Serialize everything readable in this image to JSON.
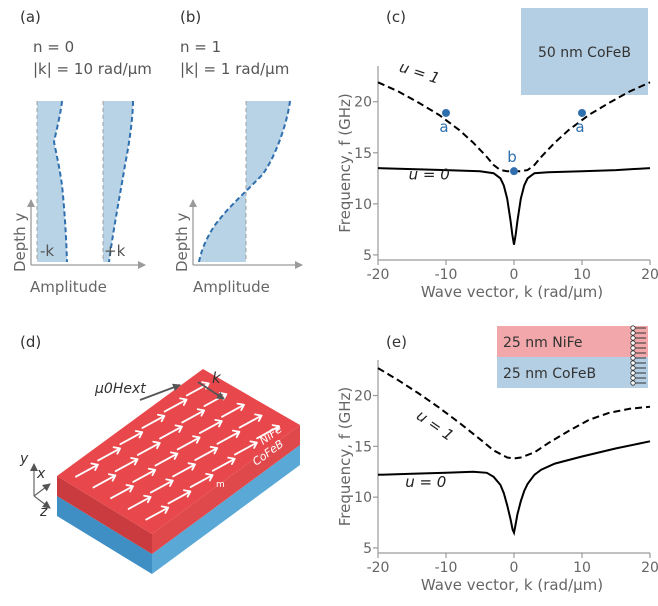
{
  "panels": {
    "a": {
      "label": "(a)",
      "n_text": "n = 0",
      "k_text": "|k| = 10 rad/µm",
      "ylabel": "Depth y",
      "xlabel": "Amplitude",
      "left_tag": "-k",
      "right_tag": "+k"
    },
    "b": {
      "label": "(b)",
      "n_text": "n = 1",
      "k_text": "|k| = 1 rad/µm",
      "ylabel": "Depth y",
      "xlabel": "Amplitude"
    },
    "c": {
      "label": "(c)",
      "legend": "50 nm CoFeB"
    },
    "d": {
      "label": "(d)",
      "field_label": "µ0Hext",
      "k_label": "k",
      "layer_top": "NiFe",
      "layer_bottom": "CoFeB",
      "m_label": "m",
      "axes": {
        "x": "x",
        "y": "y",
        "z": "z"
      }
    },
    "e": {
      "label": "(e)",
      "legend_top": "25 nm NiFe",
      "legend_bottom": "25 nm CoFeB"
    }
  },
  "colors": {
    "profile_fill": "#b8d2e6",
    "profile_line": "#2f6fad",
    "marker": "#2f6fad",
    "curve": "#000000",
    "nife": "#e8484b",
    "cofeb": "#4b9fd0",
    "legend_cofeb": "#b4cfe4",
    "legend_nife": "#f2a8aa"
  },
  "chart_data": [
    {
      "panel": "c",
      "type": "line",
      "xlabel": "Wave vector, k (rad/µm)",
      "ylabel": "Frequency, f (GHz)",
      "xlim": [
        -20,
        20
      ],
      "ylim": [
        4.5,
        23.5
      ],
      "xticks": [
        -20,
        -10,
        0,
        10,
        20
      ],
      "yticks": [
        5,
        10,
        15,
        20
      ],
      "grid": false,
      "series": [
        {
          "name": "u = 0",
          "style": "solid",
          "x": [
            -20,
            -15,
            -10,
            -5,
            -3,
            -2,
            -1.5,
            -1,
            -0.5,
            -0.25,
            0,
            0.25,
            0.5,
            1,
            1.5,
            2,
            3,
            5,
            10,
            15,
            20
          ],
          "y": [
            13.5,
            13.4,
            13.3,
            13.2,
            13.0,
            12.5,
            11.8,
            10.5,
            8.3,
            7.0,
            6.0,
            7.0,
            8.3,
            10.5,
            11.8,
            12.5,
            13.0,
            13.1,
            13.2,
            13.3,
            13.5
          ]
        },
        {
          "name": "u = 1",
          "style": "dashed",
          "x": [
            -20,
            -17,
            -14,
            -11,
            -8,
            -6,
            -4,
            -3,
            -2,
            -1,
            0,
            1,
            2,
            3,
            4,
            6,
            8,
            11,
            14,
            17,
            20
          ],
          "y": [
            21.9,
            21.0,
            19.9,
            18.7,
            17.2,
            16.0,
            14.6,
            13.8,
            13.3,
            13.2,
            13.2,
            13.2,
            13.3,
            13.8,
            14.6,
            16.0,
            17.2,
            18.7,
            19.9,
            21.0,
            21.9
          ]
        }
      ],
      "markers": [
        {
          "x": -10,
          "y": 18.9,
          "label": "a"
        },
        {
          "x": 0,
          "y": 13.2,
          "label": "b"
        },
        {
          "x": 10,
          "y": 18.9,
          "label": "a"
        }
      ],
      "curve_labels": [
        {
          "text": "u = 0",
          "x": -15.5,
          "y": 12.4
        },
        {
          "text": "u = 1",
          "x": -17,
          "y": 23.0
        }
      ]
    },
    {
      "panel": "e",
      "type": "line",
      "xlabel": "Wave vector, k (rad/µm)",
      "ylabel": "Frequency, f (GHz)",
      "xlim": [
        -20,
        20
      ],
      "ylim": [
        4.5,
        23.5
      ],
      "xticks": [
        -20,
        -10,
        0,
        10,
        20
      ],
      "yticks": [
        5,
        10,
        15,
        20
      ],
      "grid": false,
      "series": [
        {
          "name": "u = 0",
          "style": "solid",
          "x": [
            -20,
            -15,
            -10,
            -6,
            -4,
            -3,
            -2,
            -1.5,
            -1,
            -0.5,
            -0.2,
            0,
            0.2,
            0.5,
            1,
            1.5,
            2,
            3,
            4,
            6,
            10,
            15,
            20
          ],
          "y": [
            12.2,
            12.3,
            12.4,
            12.5,
            12.4,
            12.0,
            11.2,
            10.4,
            9.2,
            7.8,
            6.8,
            6.5,
            7.2,
            8.3,
            9.6,
            10.6,
            11.3,
            12.2,
            12.7,
            13.3,
            14.0,
            14.8,
            15.5
          ]
        },
        {
          "name": "u = 1",
          "style": "dashed",
          "x": [
            -20,
            -17,
            -14,
            -11,
            -8,
            -5,
            -3,
            -1,
            0,
            1,
            3,
            5,
            8,
            11,
            14,
            17,
            20
          ],
          "y": [
            22.7,
            21.5,
            20.2,
            18.8,
            17.3,
            15.7,
            14.6,
            13.9,
            13.8,
            13.9,
            14.4,
            15.3,
            16.5,
            17.6,
            18.3,
            18.7,
            18.9
          ]
        }
      ],
      "curve_labels": [
        {
          "text": "u = 0",
          "x": -16,
          "y": 11.0
        },
        {
          "text": "u = 1",
          "x": -14.5,
          "y": 17.8
        }
      ]
    }
  ]
}
